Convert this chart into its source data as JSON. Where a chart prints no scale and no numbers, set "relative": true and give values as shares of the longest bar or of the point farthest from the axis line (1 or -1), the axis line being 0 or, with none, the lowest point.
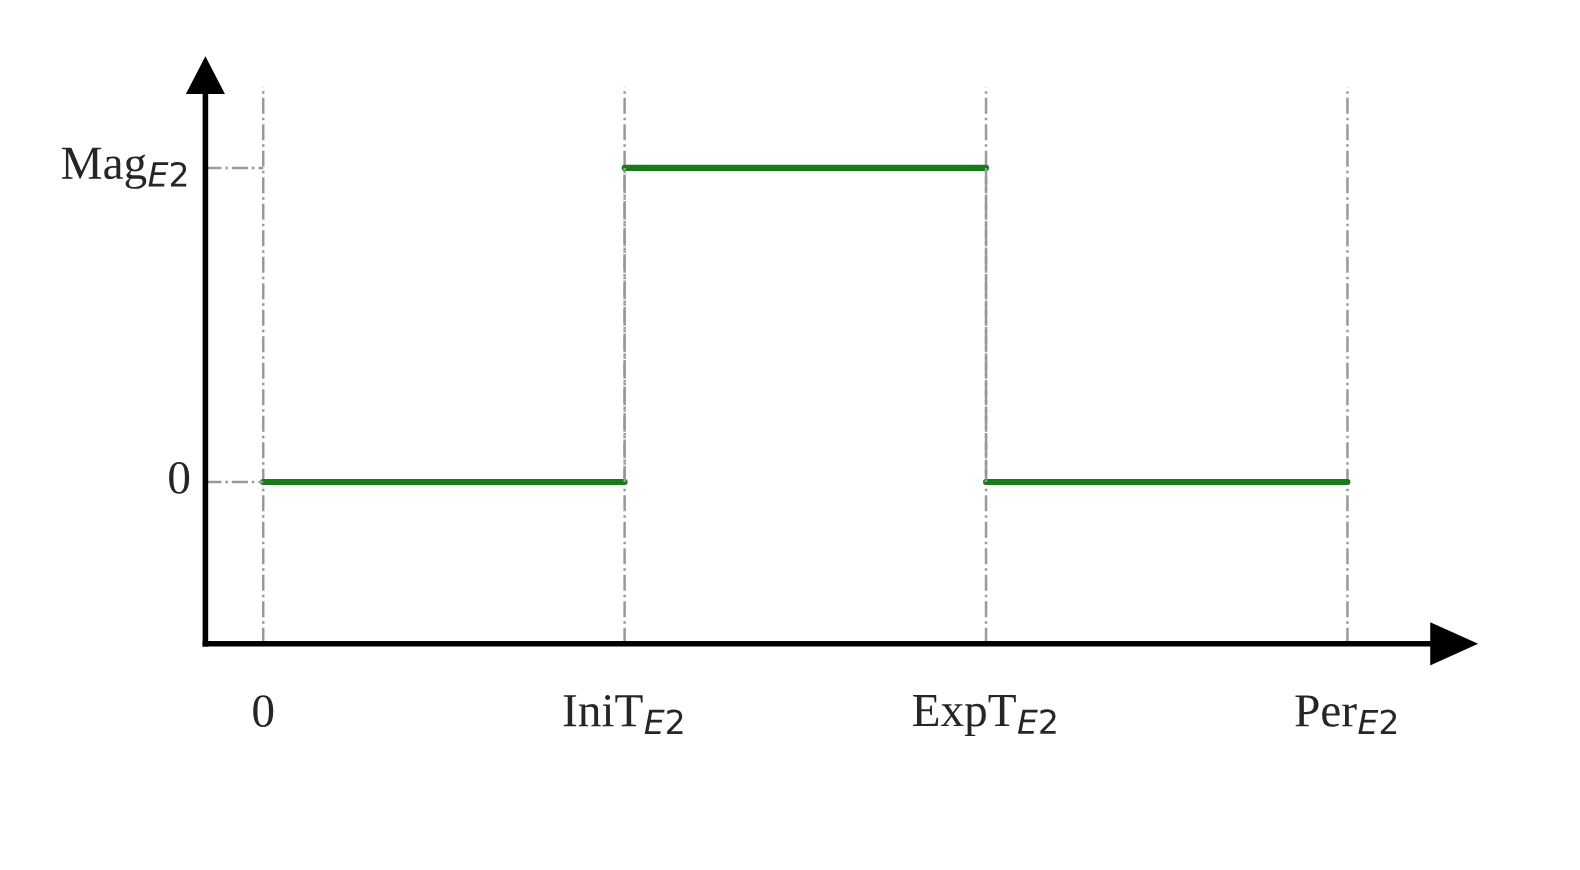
{
  "chart_data": {
    "type": "step",
    "relative": true,
    "categories": [
      "0",
      "IniT$_{E2}$",
      "ExpT$_{E2}$",
      "Per$_{E2}$"
    ],
    "series": [
      {
        "color": "#1a7a1a",
        "values": [
          0.34,
          1,
          0.34,
          0.34
        ]
      }
    ],
    "annotations": [
      "0",
      "Mag$_{E2}$"
    ],
    "grid": true,
    "marker": "none",
    "line_style": "solid",
    "legend": false
  }
}
